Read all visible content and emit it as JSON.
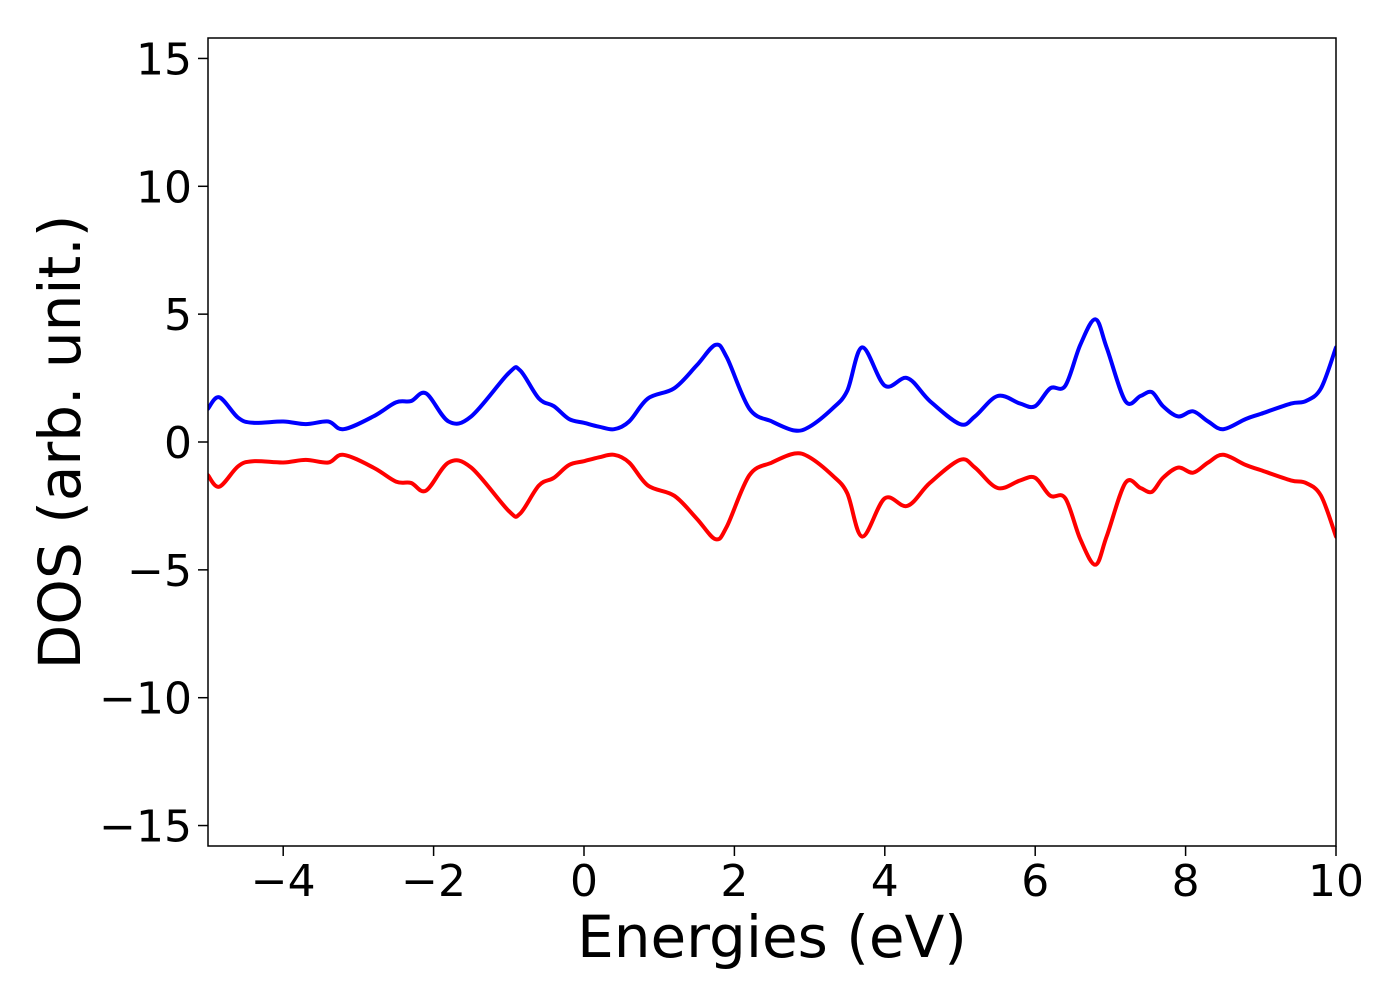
{
  "chart_data": {
    "type": "line",
    "title": "",
    "xlabel": "Energies (eV)",
    "ylabel": "DOS (arb. unit.)",
    "xlim": [
      -5,
      10
    ],
    "ylim": [
      -15.8,
      15.8
    ],
    "xticks": [
      -4,
      -2,
      0,
      2,
      4,
      6,
      8,
      10
    ],
    "xtick_labels": [
      "−4",
      "−2",
      "0",
      "2",
      "4",
      "6",
      "8",
      "10"
    ],
    "yticks": [
      15,
      10,
      5,
      0,
      -5,
      -10,
      -15
    ],
    "ytick_labels": [
      "15",
      "10",
      "5",
      "0",
      "−5",
      "−10",
      "−15"
    ],
    "grid": false,
    "legend": "none",
    "series": [
      {
        "color": "#0000ff",
        "x": [
          -5.0,
          -4.85,
          -4.6,
          -4.4,
          -4.0,
          -3.7,
          -3.4,
          -3.2,
          -2.8,
          -2.5,
          -2.3,
          -2.1,
          -1.8,
          -1.5,
          -1.0,
          -0.85,
          -0.6,
          -0.4,
          -0.2,
          0.0,
          0.2,
          0.4,
          0.6,
          0.85,
          1.2,
          1.5,
          1.75,
          1.9,
          2.2,
          2.5,
          2.8,
          3.0,
          3.3,
          3.5,
          3.7,
          4.0,
          4.3,
          4.6,
          5.0,
          5.2,
          5.5,
          5.8,
          6.0,
          6.2,
          6.4,
          6.6,
          6.8,
          6.95,
          7.2,
          7.4,
          7.55,
          7.7,
          7.9,
          8.1,
          8.3,
          8.5,
          8.8,
          9.0,
          9.4,
          9.6,
          9.8,
          10.0
        ],
        "y": [
          1.3,
          1.75,
          0.95,
          0.75,
          0.8,
          0.7,
          0.8,
          0.5,
          1.0,
          1.55,
          1.6,
          1.9,
          0.8,
          1.0,
          2.7,
          2.8,
          1.7,
          1.4,
          0.9,
          0.75,
          0.6,
          0.5,
          0.8,
          1.7,
          2.1,
          3.0,
          3.8,
          3.3,
          1.3,
          0.8,
          0.45,
          0.6,
          1.3,
          2.0,
          3.7,
          2.2,
          2.5,
          1.6,
          0.7,
          1.0,
          1.8,
          1.5,
          1.4,
          2.1,
          2.2,
          3.8,
          4.8,
          3.7,
          1.6,
          1.8,
          1.95,
          1.4,
          1.0,
          1.2,
          0.8,
          0.5,
          0.9,
          1.1,
          1.5,
          1.6,
          2.1,
          3.7
        ]
      },
      {
        "color": "#ff0000",
        "x": [
          -5.0,
          -4.85,
          -4.6,
          -4.4,
          -4.0,
          -3.7,
          -3.4,
          -3.2,
          -2.8,
          -2.5,
          -2.3,
          -2.1,
          -1.8,
          -1.5,
          -1.0,
          -0.85,
          -0.6,
          -0.4,
          -0.2,
          0.0,
          0.2,
          0.4,
          0.6,
          0.85,
          1.2,
          1.5,
          1.75,
          1.9,
          2.2,
          2.5,
          2.8,
          3.0,
          3.3,
          3.5,
          3.7,
          4.0,
          4.3,
          4.6,
          5.0,
          5.2,
          5.5,
          5.8,
          6.0,
          6.2,
          6.4,
          6.6,
          6.8,
          6.95,
          7.2,
          7.4,
          7.55,
          7.7,
          7.9,
          8.1,
          8.3,
          8.5,
          8.8,
          9.0,
          9.4,
          9.6,
          9.8,
          10.0
        ],
        "y": [
          -1.3,
          -1.75,
          -0.95,
          -0.75,
          -0.8,
          -0.7,
          -0.8,
          -0.5,
          -1.0,
          -1.55,
          -1.6,
          -1.9,
          -0.8,
          -1.0,
          -2.7,
          -2.8,
          -1.7,
          -1.4,
          -0.9,
          -0.75,
          -0.6,
          -0.5,
          -0.8,
          -1.7,
          -2.1,
          -3.0,
          -3.8,
          -3.3,
          -1.3,
          -0.8,
          -0.45,
          -0.6,
          -1.3,
          -2.0,
          -3.7,
          -2.2,
          -2.5,
          -1.6,
          -0.7,
          -1.0,
          -1.8,
          -1.5,
          -1.4,
          -2.1,
          -2.2,
          -3.8,
          -4.8,
          -3.7,
          -1.6,
          -1.8,
          -1.95,
          -1.4,
          -1.0,
          -1.2,
          -0.8,
          -0.5,
          -0.9,
          -1.1,
          -1.5,
          -1.6,
          -2.1,
          -3.7
        ]
      }
    ]
  }
}
